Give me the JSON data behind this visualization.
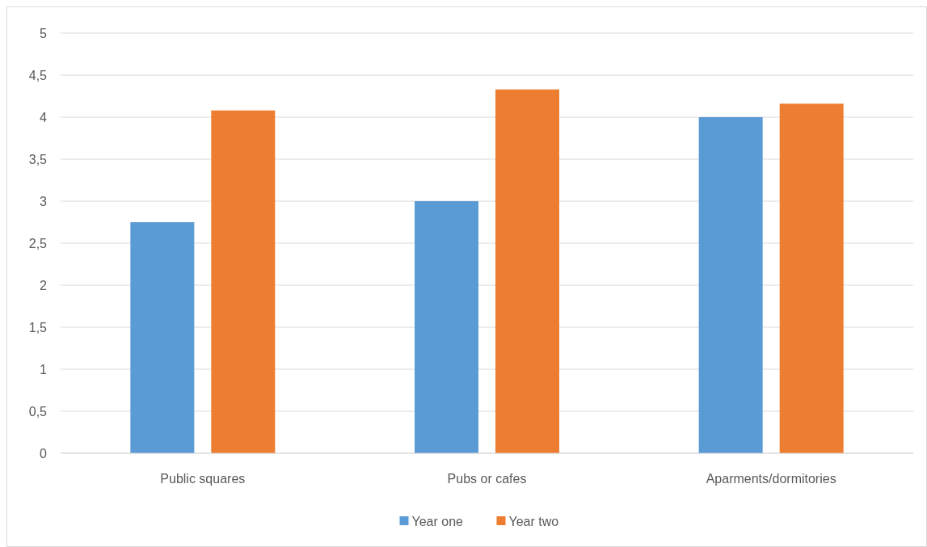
{
  "chart_data": {
    "type": "bar",
    "categories": [
      "Public squares",
      "Pubs or cafes",
      "Aparments/dormitories"
    ],
    "series": [
      {
        "name": "Year one",
        "color": "#5b9bd5",
        "values": [
          2.75,
          3,
          4
        ]
      },
      {
        "name": "Year two",
        "color": "#ed7d31",
        "values": [
          4.08,
          4.33,
          4.16
        ]
      }
    ],
    "ylim": [
      0,
      5
    ],
    "yticks": [
      0,
      {
        "value": 0.5,
        "label": "0,5"
      },
      1,
      {
        "value": 1.5,
        "label": "1,5"
      },
      2,
      {
        "value": 2.5,
        "label": "2,5"
      },
      3,
      {
        "value": 3.5,
        "label": "3,5"
      },
      4,
      {
        "value": 4.5,
        "label": "4,5"
      },
      5
    ],
    "grid": "y",
    "legend": "bottom"
  }
}
